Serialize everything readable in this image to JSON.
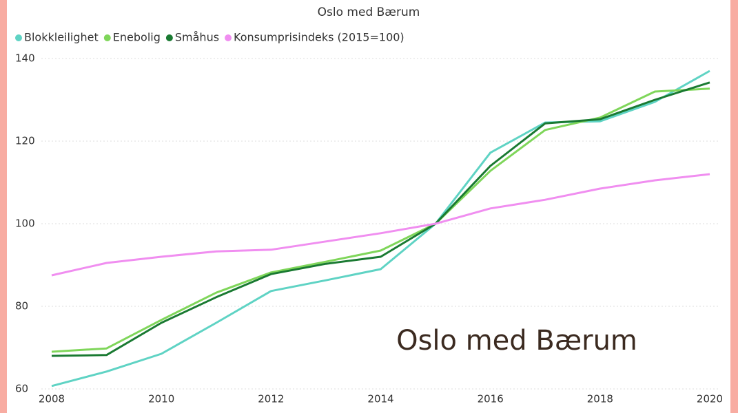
{
  "chart_data": {
    "type": "line",
    "title": "Oslo med Bærum",
    "annotation": "Oslo med Bærum",
    "x": [
      2008,
      2009,
      2010,
      2011,
      2012,
      2013,
      2014,
      2015,
      2016,
      2017,
      2018,
      2019,
      2020
    ],
    "series": [
      {
        "name": "Blokkleilighet",
        "color": "#5fd3c4",
        "values": [
          60.7,
          64.2,
          68.5,
          76,
          83.7,
          86.3,
          89,
          100,
          117.2,
          124.5,
          124.8,
          129.5,
          137
        ]
      },
      {
        "name": "Enebolig",
        "color": "#7fd65a",
        "values": [
          69,
          69.8,
          76.7,
          83.3,
          88.2,
          90.8,
          93.5,
          100,
          112.8,
          122.7,
          125.7,
          132,
          132.7
        ]
      },
      {
        "name": "Småhus",
        "color": "#1a7a32",
        "values": [
          68,
          68.2,
          76,
          82.2,
          87.8,
          90.3,
          92,
          100,
          114,
          124.3,
          125.3,
          130,
          134.2
        ]
      },
      {
        "name": "Konsumprisindeks (2015=100)",
        "color": "#f08ef0",
        "values": [
          87.5,
          90.5,
          92,
          93.3,
          93.7,
          95.7,
          97.7,
          100,
          103.7,
          105.8,
          108.5,
          110.5,
          112
        ]
      }
    ],
    "xlim": [
      2008,
      2020
    ],
    "xticks": [
      2008,
      2010,
      2012,
      2014,
      2016,
      2018,
      2020
    ],
    "ylim": [
      60,
      140
    ],
    "yticks": [
      60,
      80,
      100,
      120,
      140
    ],
    "grid": true
  }
}
